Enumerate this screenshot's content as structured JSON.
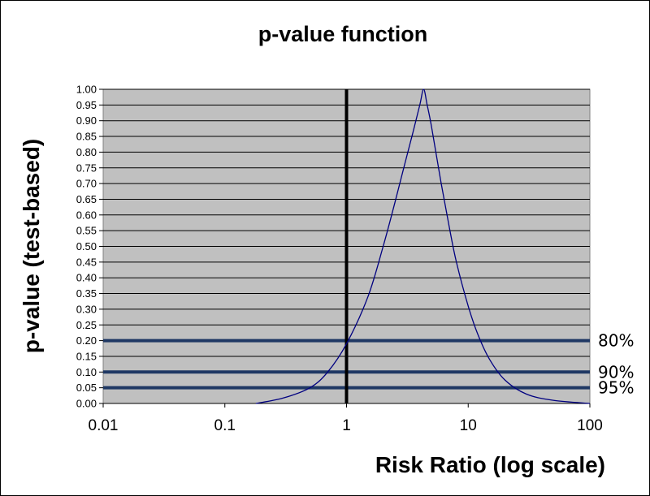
{
  "chart_data": {
    "type": "line",
    "title": "p-value function",
    "xlabel": "Risk Ratio (log scale)",
    "ylabel": "p-value (test-based)",
    "x_scale": "log",
    "xlim": [
      0.01,
      100
    ],
    "ylim": [
      0,
      1
    ],
    "x_ticks": [
      "0.01",
      "0.1",
      "1",
      "10",
      "100"
    ],
    "x_tick_values": [
      0.01,
      0.1,
      1,
      10,
      100
    ],
    "y_ticks": [
      "0.00",
      "0.05",
      "0.10",
      "0.15",
      "0.20",
      "0.25",
      "0.30",
      "0.35",
      "0.40",
      "0.45",
      "0.50",
      "0.55",
      "0.60",
      "0.65",
      "0.70",
      "0.75",
      "0.80",
      "0.85",
      "0.90",
      "0.95",
      "1.00"
    ],
    "grid": true,
    "plot_background": "#c0c0c0",
    "series": [
      {
        "color": "#000080",
        "x": [
          0.18,
          0.3,
          0.5,
          0.7,
          1.0,
          1.5,
          2.0,
          2.5,
          3.0,
          3.5,
          4.0,
          4.3,
          4.6,
          5.0,
          6.0,
          7.0,
          8.0,
          10.0,
          12.0,
          15.0,
          20.0,
          30.0,
          50.0,
          100.0
        ],
        "y": [
          0.0,
          0.017,
          0.05,
          0.1,
          0.19,
          0.34,
          0.5,
          0.64,
          0.76,
          0.86,
          0.95,
          1.0,
          0.95,
          0.88,
          0.7,
          0.56,
          0.45,
          0.31,
          0.22,
          0.14,
          0.075,
          0.03,
          0.01,
          0.0
        ]
      }
    ],
    "reference_vertical": {
      "x": 1,
      "color": "#000000"
    },
    "reference_lines": [
      {
        "y": 0.2,
        "label": "80%",
        "color": "#1f3864"
      },
      {
        "y": 0.1,
        "label": "90%",
        "color": "#1f3864"
      },
      {
        "y": 0.05,
        "label": "95%",
        "color": "#1f3864"
      }
    ]
  }
}
